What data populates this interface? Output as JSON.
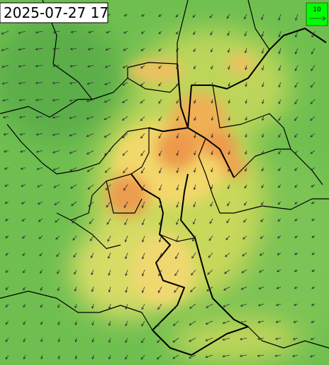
{
  "header": {
    "timestamp": "2025-07-27 17"
  },
  "legend": {
    "wind_scale_label": "10"
  }
}
